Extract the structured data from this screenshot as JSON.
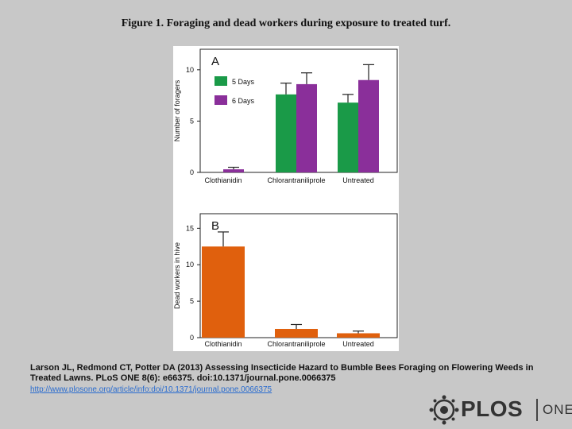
{
  "page": {
    "title": "Figure 1. Foraging and dead workers during exposure to treated turf.",
    "citation": "Larson JL, Redmond CT, Potter DA (2013) Assessing Insecticide Hazard to Bumble Bees Foraging on Flowering Weeds in Treated Lawns. PLoS ONE 8(6): e66375. doi:10.1371/journal.pone.0066375",
    "link": "http://www.plosone.org/article/info:doi/10.1371/journal.pone.0066375",
    "logo_text": "PLOS",
    "logo_sub": "ONE"
  },
  "colors": {
    "green": "#1a9a48",
    "purple": "#8a2f9a",
    "orange": "#e0600d"
  },
  "chart_data": [
    {
      "type": "bar",
      "panel_label": "A",
      "ylabel": "Number of foragers",
      "categories": [
        "Clothianidin",
        "Chlorantraniliprole",
        "Untreated"
      ],
      "ylim": [
        0,
        12
      ],
      "yticks": [
        0,
        5,
        10
      ],
      "legend_position": "top-left",
      "series": [
        {
          "name": "5 Days",
          "color": "#1a9a48",
          "values": [
            0,
            7.6,
            6.8
          ],
          "errors": [
            0,
            1.1,
            0.8
          ]
        },
        {
          "name": "6 Days",
          "color": "#8a2f9a",
          "values": [
            0.3,
            8.6,
            9.0
          ],
          "errors": [
            0.2,
            1.1,
            1.5
          ]
        }
      ]
    },
    {
      "type": "bar",
      "panel_label": "B",
      "ylabel": "Dead workers in hive",
      "categories": [
        "Clothianidin",
        "Chlorantraniliprole",
        "Untreated"
      ],
      "ylim": [
        0,
        17
      ],
      "yticks": [
        0,
        5,
        10,
        15
      ],
      "series": [
        {
          "name": "",
          "color": "#e0600d",
          "values": [
            12.5,
            1.2,
            0.6
          ],
          "errors": [
            2.0,
            0.6,
            0.3
          ]
        }
      ]
    }
  ]
}
